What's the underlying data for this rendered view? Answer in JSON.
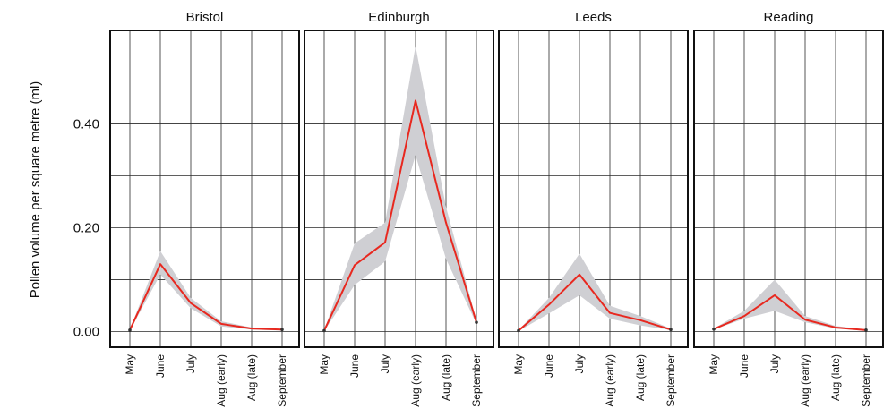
{
  "chart_data": {
    "type": "line",
    "ylabel": "Pollen volume per square metre (ml)",
    "ylim": [
      -0.03,
      0.58
    ],
    "yticks": [
      0.0,
      0.2,
      0.4
    ],
    "ytick_labels": [
      "0.00",
      "0.20",
      "0.40"
    ],
    "categories": [
      "May",
      "June",
      "July",
      "Aug (early)",
      "Aug (late)",
      "September"
    ],
    "grid": true,
    "colors": {
      "line": "#e8281f",
      "band": "#cfcfd3",
      "frame": "#111111"
    },
    "panels": [
      {
        "title": "Bristol",
        "values": [
          0.003,
          0.13,
          0.055,
          0.015,
          0.006,
          0.004
        ],
        "lower": [
          0.002,
          0.11,
          0.045,
          0.01,
          0.004,
          0.002
        ],
        "upper": [
          0.004,
          0.155,
          0.065,
          0.02,
          0.008,
          0.005
        ]
      },
      {
        "title": "Edinburgh",
        "values": [
          0.002,
          0.128,
          0.172,
          0.445,
          0.21,
          0.018
        ],
        "lower": [
          0.001,
          0.09,
          0.135,
          0.34,
          0.14,
          0.015
        ],
        "upper": [
          0.003,
          0.17,
          0.21,
          0.55,
          0.24,
          0.022
        ]
      },
      {
        "title": "Leeds",
        "values": [
          0.002,
          0.052,
          0.11,
          0.036,
          0.022,
          0.004
        ],
        "lower": [
          0.001,
          0.035,
          0.07,
          0.025,
          0.012,
          0.003
        ],
        "upper": [
          0.003,
          0.065,
          0.15,
          0.05,
          0.03,
          0.006
        ]
      },
      {
        "title": "Reading",
        "values": [
          0.005,
          0.03,
          0.07,
          0.023,
          0.008,
          0.003
        ],
        "lower": [
          0.004,
          0.025,
          0.04,
          0.018,
          0.006,
          0.002
        ],
        "upper": [
          0.006,
          0.04,
          0.1,
          0.03,
          0.011,
          0.004
        ]
      }
    ]
  }
}
